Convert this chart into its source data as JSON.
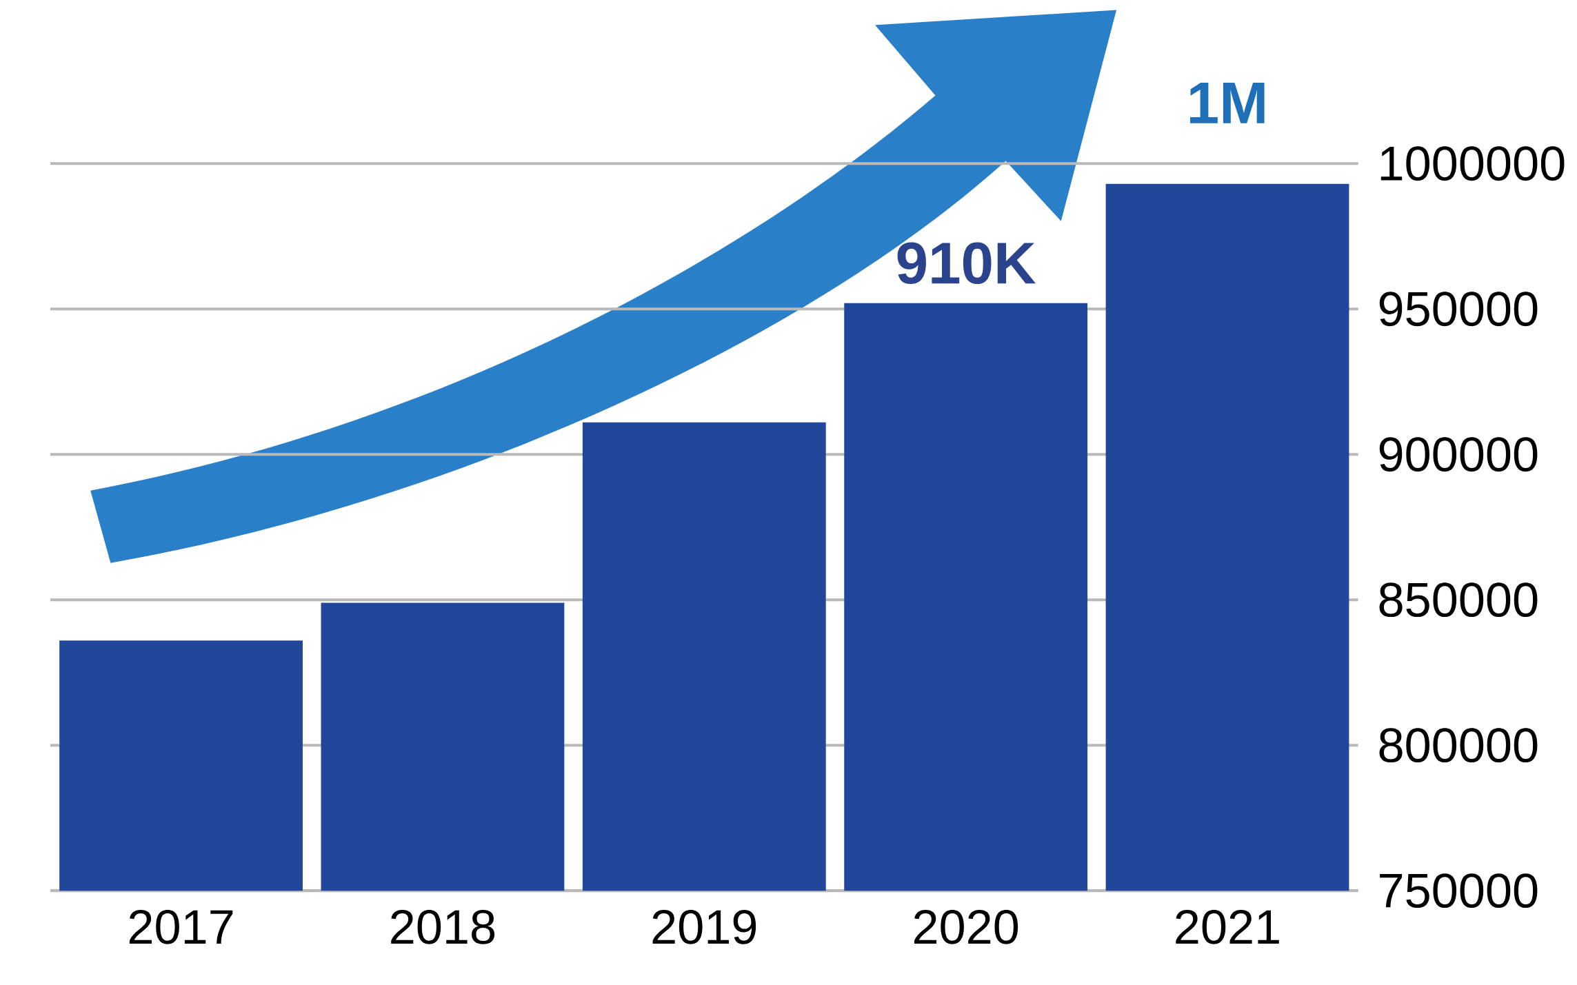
{
  "chart_data": {
    "type": "bar",
    "categories": [
      "2017",
      "2018",
      "2019",
      "2020",
      "2021"
    ],
    "values": [
      836000,
      849000,
      911000,
      952000,
      993000
    ],
    "color": "#21479a",
    "ylim": [
      750000,
      1000000
    ],
    "yticks": [
      750000,
      800000,
      850000,
      900000,
      950000,
      1000000
    ],
    "grid": "y",
    "annotations": [
      "910K",
      "1M"
    ]
  }
}
